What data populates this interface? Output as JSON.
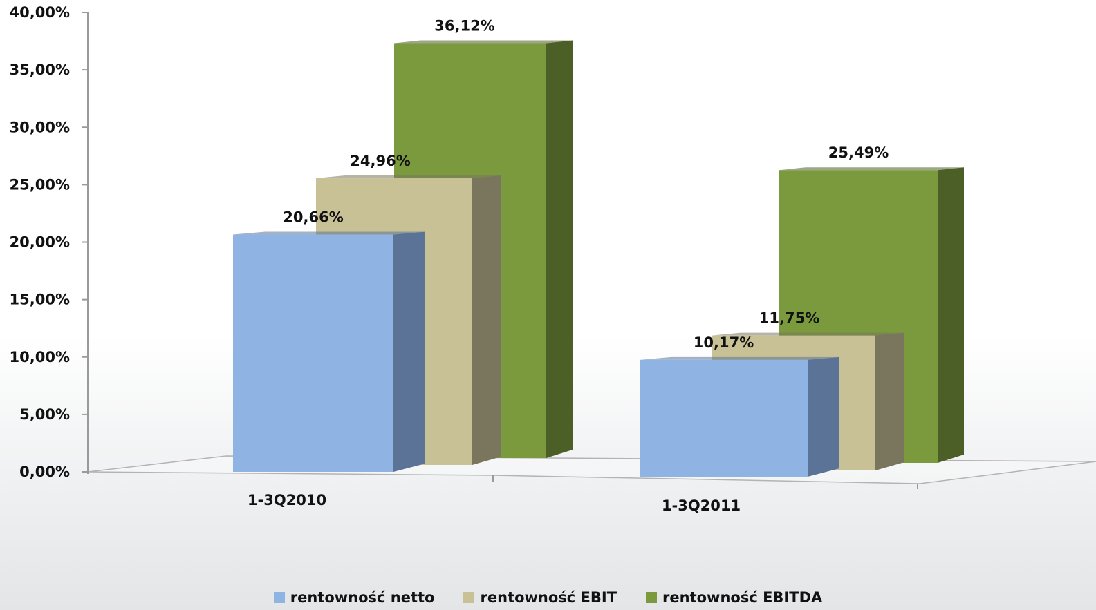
{
  "chart_data": {
    "type": "bar",
    "categories": [
      "1-3Q2010",
      "1-3Q2011"
    ],
    "series": [
      {
        "name": "rentowność netto",
        "values": [
          20.66,
          10.17
        ],
        "labels": [
          "20,66%",
          "10,17%"
        ],
        "color": "#8fb4e3",
        "side_color": "#5a7396"
      },
      {
        "name": "rentowność EBIT",
        "values": [
          24.96,
          11.75
        ],
        "labels": [
          "24,96%",
          "11,75%"
        ],
        "color": "#c9c196",
        "side_color": "#7a765e"
      },
      {
        "name": "rentowność EBITDA",
        "values": [
          36.12,
          25.49
        ],
        "labels": [
          "36,12%",
          "25,49%"
        ],
        "color": "#7a9a3d",
        "side_color": "#4b5f27"
      }
    ],
    "ylim": [
      0,
      40
    ],
    "y_ticks": [
      "0,00%",
      "5,00%",
      "10,00%",
      "15,00%",
      "20,00%",
      "25,00%",
      "30,00%",
      "35,00%",
      "40,00%"
    ],
    "grid": false,
    "legend_position": "bottom",
    "title": "",
    "xlabel": "",
    "ylabel": ""
  }
}
